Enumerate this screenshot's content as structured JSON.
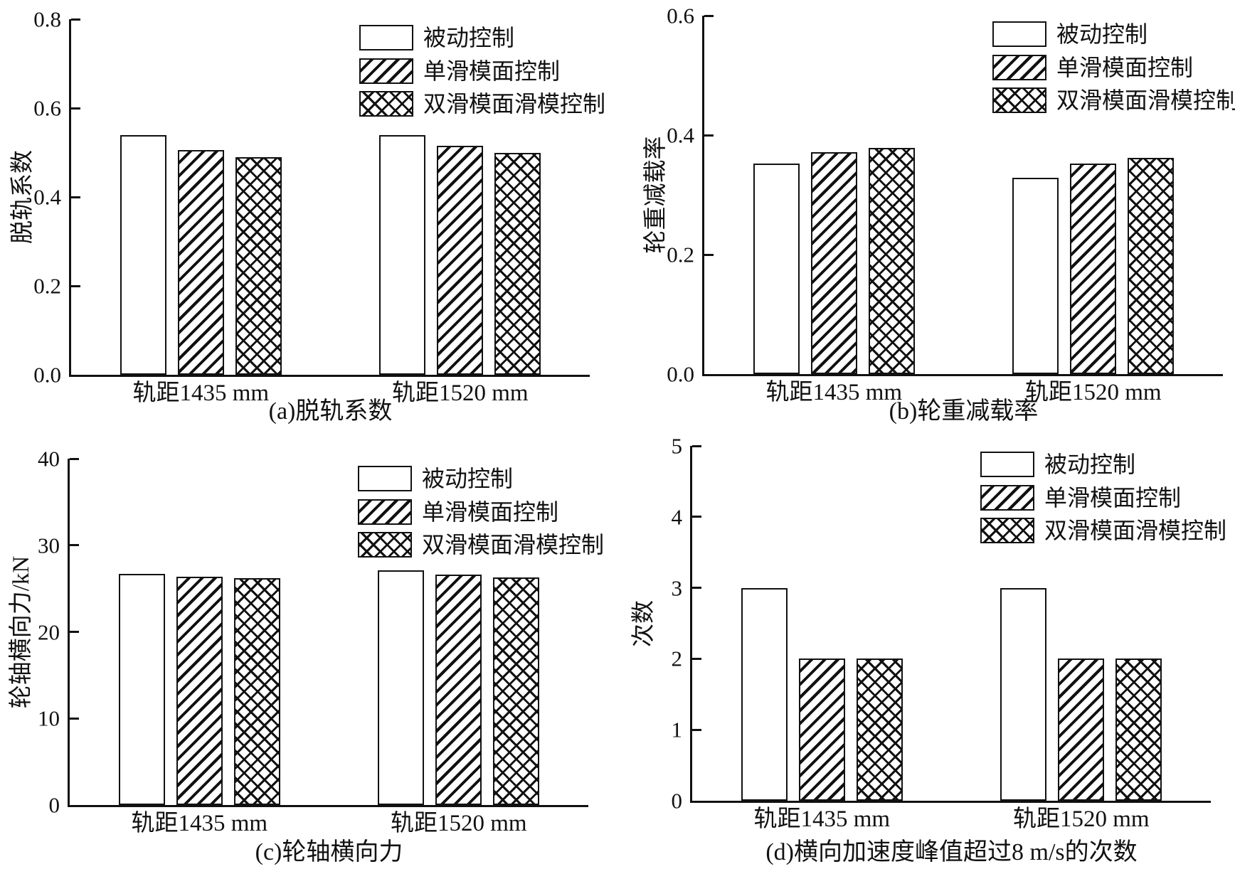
{
  "figure": {
    "background": "#ffffff",
    "ink_color": "#111111",
    "legend_labels": [
      "被动控制",
      "单滑模面控制",
      "双滑模面滑模控制"
    ],
    "legend_patterns": [
      "plain-white",
      "diagonal-hatch",
      "cross-hatch"
    ]
  },
  "chart_data": [
    {
      "type": "bar",
      "panel": "a",
      "title": "(a)脱轨系数",
      "ylabel": "脱轨系数",
      "xlabel": "",
      "ylim": [
        0,
        0.8
      ],
      "yticks": [
        "0.0",
        "0.2",
        "0.4",
        "0.6",
        "0.8"
      ],
      "categories": [
        "轨距1435 mm",
        "轨距1520 mm"
      ],
      "series": [
        {
          "name": "被动控制",
          "pattern": "plain",
          "values": [
            0.54,
            0.54
          ]
        },
        {
          "name": "单滑模面控制",
          "pattern": "diag",
          "values": [
            0.505,
            0.515
          ]
        },
        {
          "name": "双滑模面滑模控制",
          "pattern": "cross",
          "values": [
            0.49,
            0.5
          ]
        }
      ],
      "legend_position": "top-right",
      "grid": false
    },
    {
      "type": "bar",
      "panel": "b",
      "title": "(b)轮重减载率",
      "ylabel": "轮重减载率",
      "xlabel": "",
      "ylim": [
        0,
        0.6
      ],
      "yticks": [
        "0.0",
        "0.2",
        "0.4",
        "0.6"
      ],
      "categories": [
        "轨距1435 mm",
        "轨距1520 mm"
      ],
      "series": [
        {
          "name": "被动控制",
          "pattern": "plain",
          "values": [
            0.352,
            0.328
          ]
        },
        {
          "name": "单滑模面控制",
          "pattern": "diag",
          "values": [
            0.372,
            0.352
          ]
        },
        {
          "name": "双滑模面滑模控制",
          "pattern": "cross",
          "values": [
            0.378,
            0.362
          ]
        }
      ],
      "legend_position": "top-right",
      "grid": false
    },
    {
      "type": "bar",
      "panel": "c",
      "title": "(c)轮轴横向力",
      "ylabel": "轮轴横向力/kN",
      "xlabel": "",
      "ylim": [
        0,
        40
      ],
      "yticks": [
        "0",
        "10",
        "20",
        "30",
        "40"
      ],
      "categories": [
        "轨距1435 mm",
        "轨距1520 mm"
      ],
      "series": [
        {
          "name": "被动控制",
          "pattern": "plain",
          "values": [
            26.7,
            27.1
          ]
        },
        {
          "name": "单滑模面控制",
          "pattern": "diag",
          "values": [
            26.4,
            26.6
          ]
        },
        {
          "name": "双滑模面滑模控制",
          "pattern": "cross",
          "values": [
            26.2,
            26.3
          ]
        }
      ],
      "legend_position": "top-right",
      "grid": false
    },
    {
      "type": "bar",
      "panel": "d",
      "title": "(d)横向加速度峰值超过8 m/s的次数",
      "ylabel": "次数",
      "xlabel": "",
      "ylim": [
        0,
        5
      ],
      "yticks": [
        "0",
        "1",
        "2",
        "3",
        "4",
        "5"
      ],
      "categories": [
        "轨距1435 mm",
        "轨距1520 mm"
      ],
      "series": [
        {
          "name": "被动控制",
          "pattern": "plain",
          "values": [
            3,
            3
          ]
        },
        {
          "name": "单滑模面控制",
          "pattern": "diag",
          "values": [
            2,
            2
          ]
        },
        {
          "name": "双滑模面滑模控制",
          "pattern": "cross",
          "values": [
            2,
            2
          ]
        }
      ],
      "legend_position": "top-right",
      "grid": false
    }
  ]
}
